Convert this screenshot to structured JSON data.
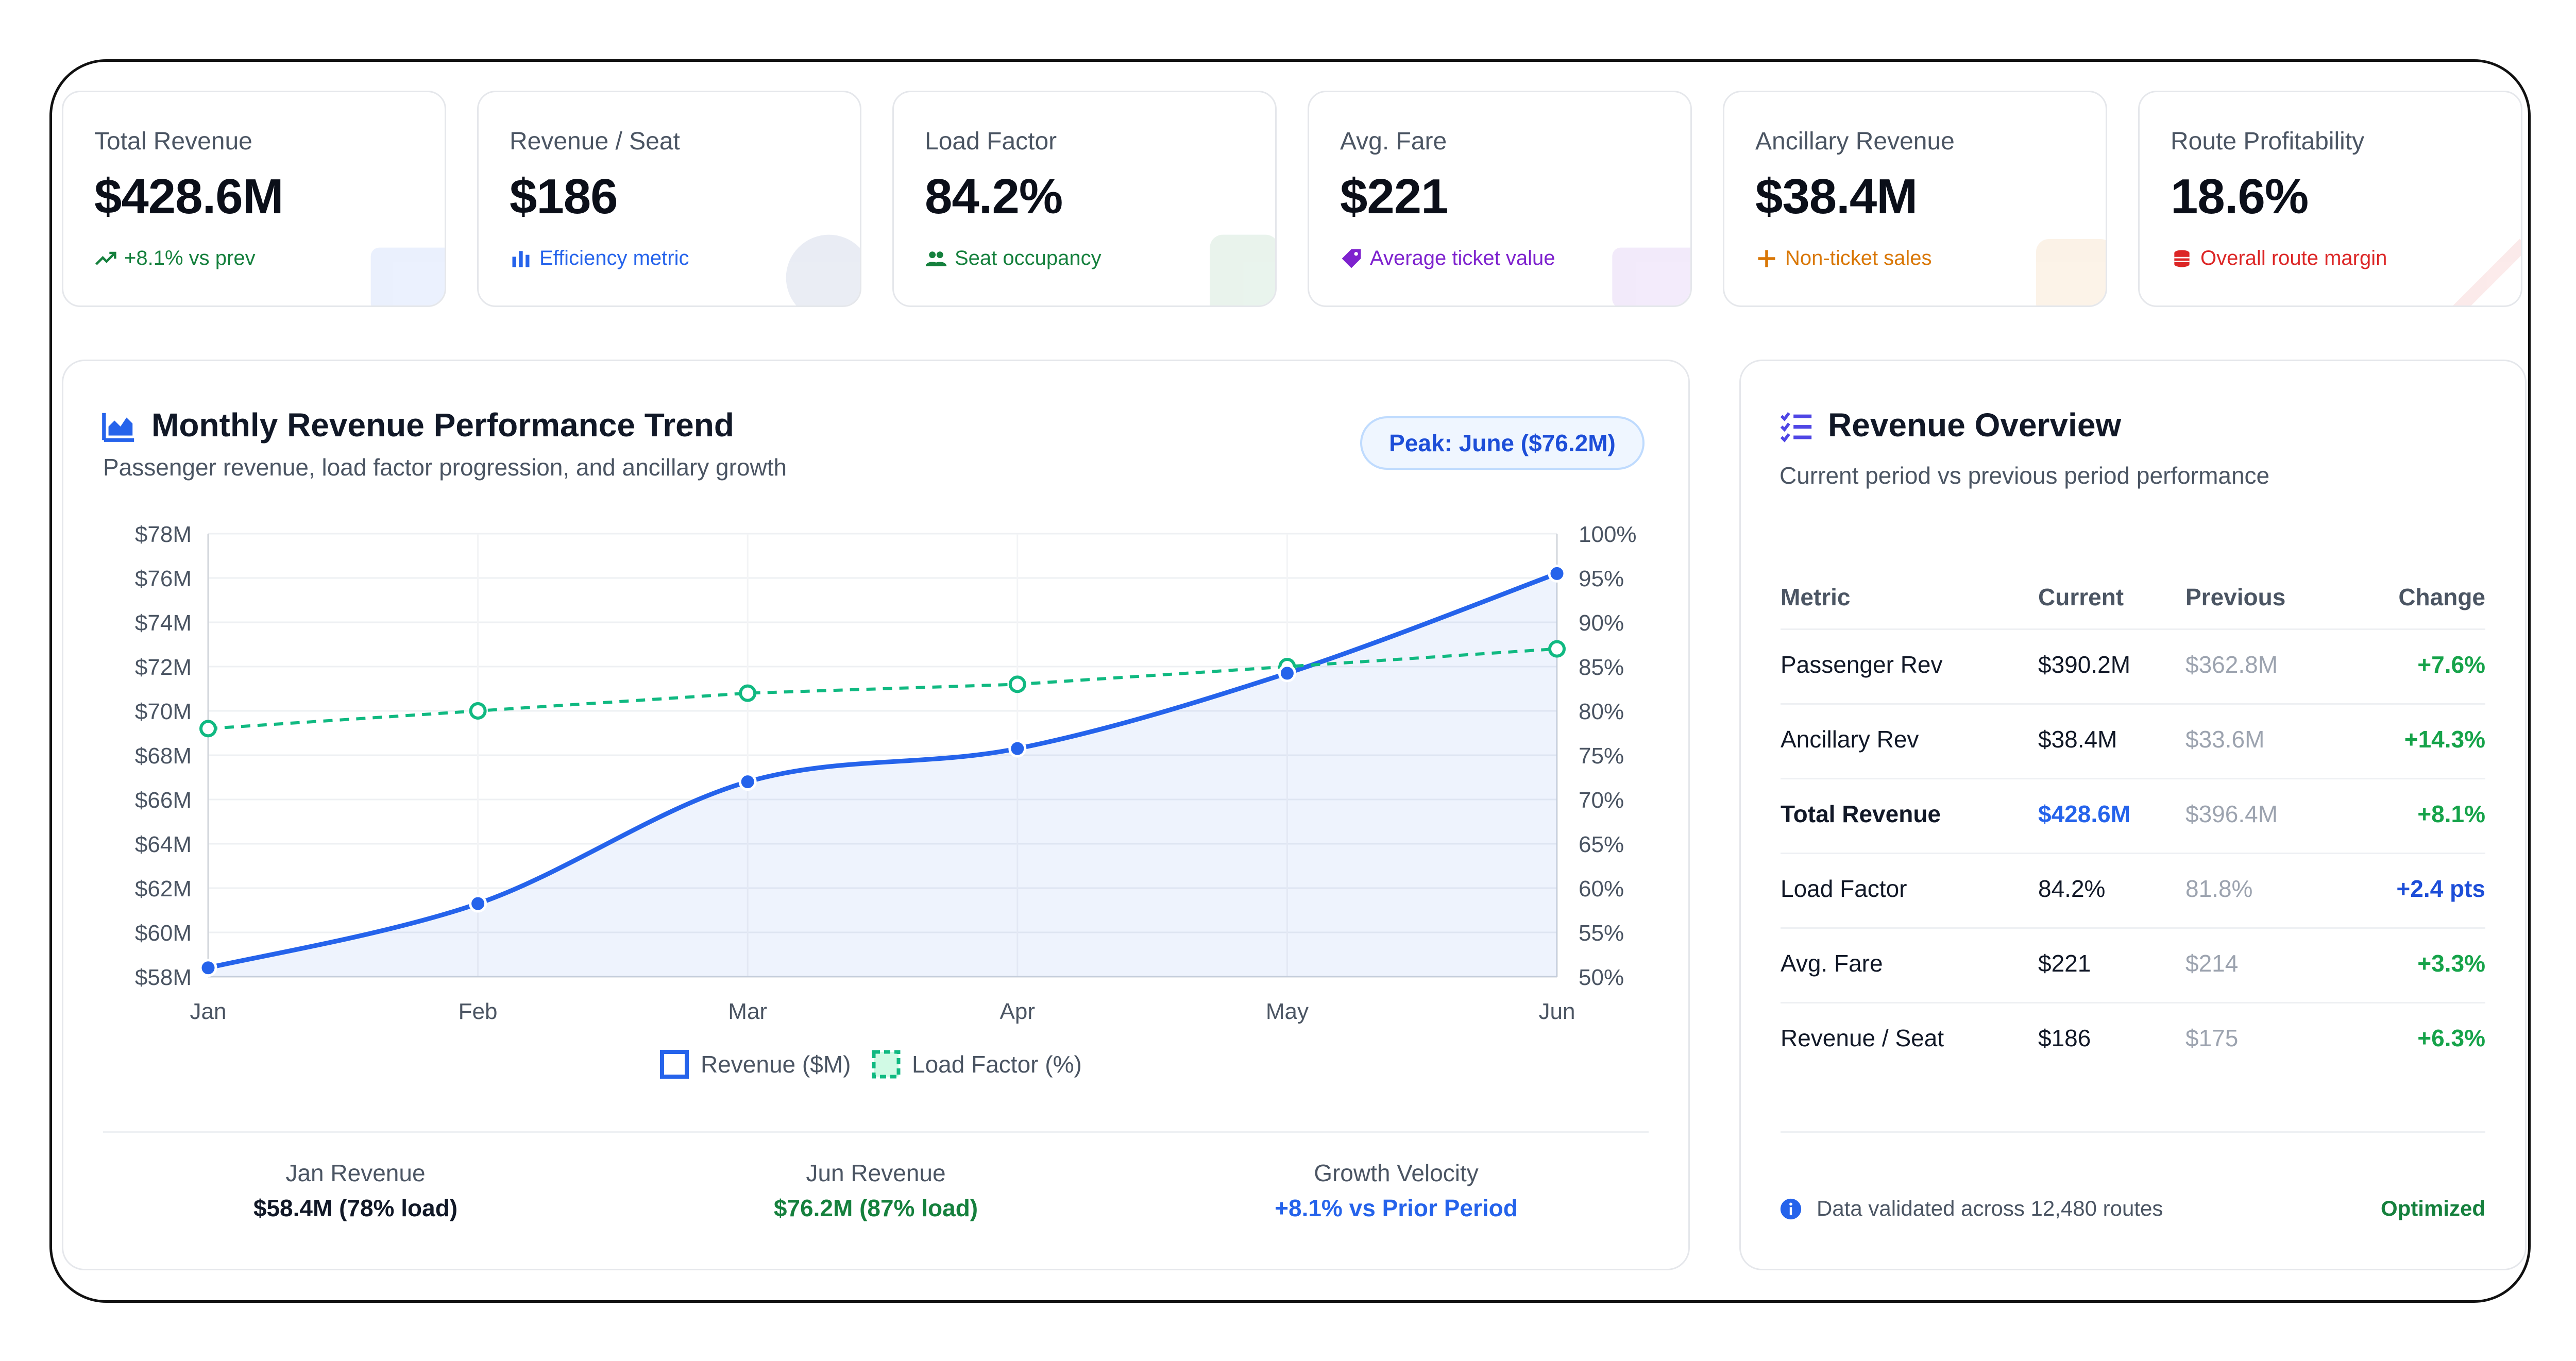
{
  "kpis": [
    {
      "label": "Total Revenue",
      "value": "$428.6M",
      "sub": "+8.1% vs prev",
      "sub_color": "#15803d",
      "icon": "trending-up-icon"
    },
    {
      "label": "Revenue / Seat",
      "value": "$186",
      "sub": "Efficiency metric",
      "sub_color": "#2563eb",
      "icon": "bar-chart-icon"
    },
    {
      "label": "Load Factor",
      "value": "84.2%",
      "sub": "Seat occupancy",
      "sub_color": "#15803d",
      "icon": "users-icon"
    },
    {
      "label": "Avg. Fare",
      "value": "$221",
      "sub": "Average ticket value",
      "sub_color": "#7e22ce",
      "icon": "tag-icon"
    },
    {
      "label": "Ancillary Revenue",
      "value": "$38.4M",
      "sub": "Non-ticket sales",
      "sub_color": "#d97706",
      "icon": "plus-icon"
    },
    {
      "label": "Route Profitability",
      "value": "18.6%",
      "sub": "Overall route margin",
      "sub_color": "#dc2626",
      "icon": "coins-icon"
    }
  ],
  "trend": {
    "title": "Monthly Revenue Performance Trend",
    "subtitle": "Passenger revenue, load factor progression, and ancillary growth",
    "peak_pill": "Peak: June ($76.2M)",
    "footer": [
      {
        "label": "Jan Revenue",
        "value": "$58.4M (78% load)",
        "color": "#111827"
      },
      {
        "label": "Jun Revenue",
        "value": "$76.2M (87% load)",
        "color": "#15803d"
      },
      {
        "label": "Growth Velocity",
        "value": "+8.1% vs Prior Period",
        "color": "#2563eb"
      }
    ]
  },
  "chart_data": {
    "type": "line",
    "x": [
      "Jan",
      "Feb",
      "Mar",
      "Apr",
      "May",
      "Jun"
    ],
    "series": [
      {
        "name": "Revenue ($M)",
        "axis": "left",
        "color": "#2563eb",
        "values": [
          58.4,
          61.3,
          66.8,
          68.3,
          71.7,
          76.2
        ]
      },
      {
        "name": "Load Factor (%)",
        "axis": "right",
        "color": "#10b981",
        "dashed": true,
        "values": [
          78,
          80,
          82,
          83,
          85,
          87
        ]
      }
    ],
    "y_left": {
      "min": 58,
      "max": 78,
      "ticks": [
        "$58M",
        "$60M",
        "$62M",
        "$64M",
        "$66M",
        "$68M",
        "$70M",
        "$72M",
        "$74M",
        "$76M",
        "$78M"
      ]
    },
    "y_right": {
      "min": 50,
      "max": 100,
      "ticks": [
        "50%",
        "55%",
        "60%",
        "65%",
        "70%",
        "75%",
        "80%",
        "85%",
        "90%",
        "95%",
        "100%"
      ]
    },
    "grid": true,
    "legend": "bottom-center"
  },
  "overview": {
    "title": "Revenue Overview",
    "subtitle": "Current period vs previous period performance",
    "headers": {
      "metric": "Metric",
      "current": "Current",
      "previous": "Previous",
      "change": "Change"
    },
    "rows": [
      {
        "metric": "Passenger Rev",
        "current": "$390.2M",
        "previous": "$362.8M",
        "change": "+7.6%"
      },
      {
        "metric": "Ancillary Rev",
        "current": "$38.4M",
        "previous": "$33.6M",
        "change": "+14.3%"
      },
      {
        "metric": "Total Revenue",
        "current": "$428.6M",
        "previous": "$396.4M",
        "change": "+8.1%",
        "bold": true
      },
      {
        "metric": "Load Factor",
        "current": "84.2%",
        "previous": "81.8%",
        "change": "+2.4 pts",
        "change_color": "#1d4ed8"
      },
      {
        "metric": "Avg. Fare",
        "current": "$221",
        "previous": "$214",
        "change": "+3.3%"
      },
      {
        "metric": "Revenue / Seat",
        "current": "$186",
        "previous": "$175",
        "change": "+6.3%"
      }
    ],
    "footer_note": "Data validated across 12,480 routes",
    "footer_status": "Optimized"
  }
}
